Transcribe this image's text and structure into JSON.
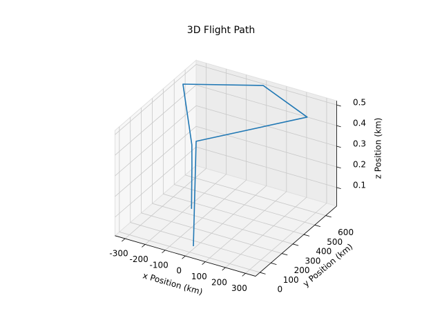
{
  "chart_data": {
    "type": "line3d",
    "title": "3D Flight Path",
    "xlabel": "x Position (km)",
    "ylabel": "y Position (km)",
    "zlabel": "z Position (km)",
    "x": [
      -12,
      -18,
      221,
      0,
      -314,
      -197,
      -152,
      -100
    ],
    "y": [
      56,
      92,
      667,
      670,
      514,
      381,
      299,
      200
    ],
    "z": [
      0.01,
      0.5,
      0.42,
      0.51,
      0.5,
      0.3,
      0.25,
      0.1
    ],
    "color": "#1f77b4",
    "xlim": [
      -350,
      350
    ],
    "ylim": [
      -40,
      700
    ],
    "zlim": [
      0.01,
      0.52
    ],
    "xticks": [
      -300,
      -200,
      -100,
      0,
      100,
      200,
      300
    ],
    "yticks": [
      0,
      100,
      200,
      300,
      400,
      500,
      600
    ],
    "zticks": [
      0.1,
      0.2,
      0.3,
      0.4,
      0.5
    ],
    "grid": true
  }
}
